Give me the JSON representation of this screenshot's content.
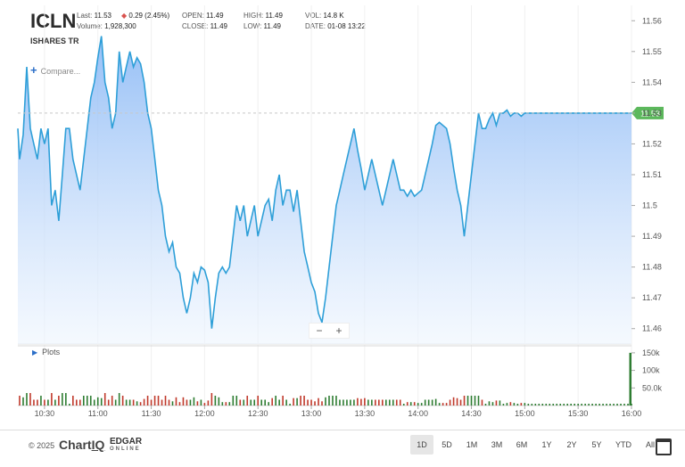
{
  "quote": {
    "symbol": "ICLN",
    "name": "ISHARES TR",
    "last_label": "Last:",
    "last": "11.53",
    "change": "0.29 (2.45%)",
    "volume_label": "Volume:",
    "volume": "1,928,300",
    "open_label": "OPEN:",
    "open": "11.49",
    "close_label": "CLOSE:",
    "close": "11.49",
    "high_label": "HIGH:",
    "high": "11.49",
    "low_label": "LOW:",
    "low": "11.49",
    "vol_label": "VOL:",
    "vol": "14.8 K",
    "date_label": "DATE:",
    "date": "01-08 13:22"
  },
  "controls": {
    "compare": "Compare...",
    "zoom_out": "−",
    "zoom_in": "+",
    "plots": "Plots"
  },
  "footer": {
    "copyright": "© 2025",
    "chartiq_a": "Chart",
    "chartiq_b": "IQ",
    "edgar": "EDGAR",
    "edgar_sub": "ONLINE",
    "ranges": [
      "1D",
      "5D",
      "1M",
      "3M",
      "6M",
      "1Y",
      "2Y",
      "5Y",
      "YTD",
      "All"
    ],
    "active_range": "1D"
  },
  "colors": {
    "line": "#2e9fd8",
    "fill_top": "#8ab8f5",
    "fill_bottom": "#eef5fe",
    "last_badge": "#5cb85c",
    "vol_up": "#2e7d32",
    "vol_down": "#c0392b"
  },
  "chart_data": {
    "type": "area",
    "ylim": [
      11.455,
      11.565
    ],
    "y_ticks": [
      11.46,
      11.47,
      11.48,
      11.49,
      11.5,
      11.51,
      11.52,
      11.53,
      11.54,
      11.55,
      11.56
    ],
    "y_tick_labels": [
      "11.46",
      "11.47",
      "11.48",
      "11.49",
      "11.5",
      "11.51",
      "11.52",
      "11.53",
      "11.54",
      "11.55",
      "11.56"
    ],
    "x_range": [
      "10:15",
      "16:00"
    ],
    "x_ticks": [
      "10:30",
      "11:00",
      "11:30",
      "12:00",
      "12:30",
      "13:00",
      "13:30",
      "14:00",
      "14:30",
      "15:00",
      "15:30",
      "16:00"
    ],
    "last_price": 11.53,
    "last_label": "11.53",
    "series": [
      {
        "x": [
          "10:15",
          "10:16",
          "10:18",
          "10:20",
          "10:22",
          "10:24",
          "10:26",
          "10:28",
          "10:30",
          "10:32",
          "10:34",
          "10:36",
          "10:38",
          "10:40",
          "10:42",
          "10:44",
          "10:46",
          "10:48",
          "10:50",
          "10:52",
          "10:54",
          "10:56",
          "10:58",
          "11:00",
          "11:02",
          "11:04",
          "11:06",
          "11:08",
          "11:10",
          "11:12",
          "11:14",
          "11:16",
          "11:18",
          "11:20",
          "11:22",
          "11:24",
          "11:26",
          "11:28",
          "11:30",
          "11:32",
          "11:34",
          "11:36",
          "11:38",
          "11:40",
          "11:42",
          "11:44",
          "11:46",
          "11:48",
          "11:50",
          "11:52",
          "11:54",
          "11:56",
          "11:58",
          "12:00",
          "12:02",
          "12:04",
          "12:06",
          "12:08",
          "12:10",
          "12:12",
          "12:14",
          "12:16",
          "12:18",
          "12:20",
          "12:22",
          "12:24",
          "12:26",
          "12:28",
          "12:30",
          "12:32",
          "12:34",
          "12:36",
          "12:38",
          "12:40",
          "12:42",
          "12:44",
          "12:46",
          "12:48",
          "12:50",
          "12:52",
          "12:54",
          "12:56",
          "12:58",
          "13:00",
          "13:02",
          "13:04",
          "13:06",
          "13:08",
          "13:10",
          "13:12",
          "13:14",
          "13:16",
          "13:18",
          "13:20",
          "13:22",
          "13:24",
          "13:26",
          "13:28",
          "13:30",
          "13:32",
          "13:34",
          "13:36",
          "13:38",
          "13:40",
          "13:42",
          "13:44",
          "13:46",
          "13:48",
          "13:50",
          "13:52",
          "13:54",
          "13:56",
          "13:58",
          "14:00",
          "14:02",
          "14:04",
          "14:06",
          "14:08",
          "14:10",
          "14:12",
          "14:14",
          "14:16",
          "14:18",
          "14:20",
          "14:22",
          "14:24",
          "14:26",
          "14:28",
          "14:30",
          "14:32",
          "14:34",
          "14:36",
          "14:38",
          "14:40",
          "14:42",
          "14:44",
          "14:46",
          "14:48",
          "14:50",
          "14:52",
          "14:54",
          "14:56",
          "14:58",
          "15:00",
          "15:02",
          "15:04",
          "15:06",
          "15:08",
          "15:10",
          "15:12",
          "15:14",
          "15:16",
          "15:18",
          "15:20",
          "15:22",
          "15:24",
          "15:26",
          "15:28",
          "15:30",
          "15:32",
          "15:34",
          "15:36",
          "15:38",
          "15:40",
          "15:42",
          "15:44",
          "15:46",
          "15:48",
          "15:50",
          "15:52",
          "15:54",
          "15:56",
          "15:58",
          "16:00"
        ],
        "values": [
          11.525,
          11.515,
          11.523,
          11.545,
          11.525,
          11.52,
          11.515,
          11.525,
          11.52,
          11.525,
          11.5,
          11.505,
          11.495,
          11.51,
          11.525,
          11.525,
          11.515,
          11.51,
          11.505,
          11.515,
          11.525,
          11.535,
          11.54,
          11.548,
          11.555,
          11.54,
          11.535,
          11.525,
          11.53,
          11.55,
          11.54,
          11.545,
          11.55,
          11.545,
          11.548,
          11.546,
          11.54,
          11.53,
          11.525,
          11.515,
          11.505,
          11.5,
          11.49,
          11.485,
          11.488,
          11.48,
          11.478,
          11.47,
          11.465,
          11.47,
          11.478,
          11.475,
          11.48,
          11.479,
          11.475,
          11.46,
          11.47,
          11.478,
          11.48,
          11.478,
          11.48,
          11.49,
          11.5,
          11.495,
          11.5,
          11.49,
          11.495,
          11.5,
          11.49,
          11.495,
          11.5,
          11.502,
          11.495,
          11.505,
          11.51,
          11.5,
          11.505,
          11.505,
          11.498,
          11.505,
          11.495,
          11.485,
          11.48,
          11.475,
          11.472,
          11.465,
          11.462,
          11.47,
          11.48,
          11.49,
          11.5,
          11.505,
          11.51,
          11.515,
          11.52,
          11.525,
          11.518,
          11.512,
          11.505,
          11.51,
          11.515,
          11.51,
          11.505,
          11.5,
          11.505,
          11.51,
          11.515,
          11.51,
          11.505,
          11.505,
          11.503,
          11.505,
          11.503,
          11.504,
          11.505,
          11.51,
          11.515,
          11.52,
          11.526,
          11.527,
          11.526,
          11.525,
          11.52,
          11.512,
          11.505,
          11.5,
          11.49,
          11.5,
          11.51,
          11.52,
          11.53,
          11.525,
          11.525,
          11.528,
          11.53,
          11.526,
          11.53,
          11.53,
          11.531,
          11.529,
          11.53,
          11.53,
          11.529,
          11.53,
          11.53,
          11.53,
          11.53,
          11.53,
          11.53,
          11.53,
          11.53,
          11.53,
          11.53,
          11.53,
          11.53,
          11.53,
          11.53,
          11.53,
          11.53,
          11.53,
          11.53,
          11.53,
          11.53,
          11.53,
          11.53,
          11.53,
          11.53,
          11.53,
          11.53,
          11.53,
          11.53,
          11.53,
          11.53,
          11.53
        ]
      }
    ],
    "volume": {
      "y_tick_labels": [
        "150k",
        "100k",
        "50.0k"
      ],
      "y_ticks": [
        150000,
        100000,
        50000
      ],
      "ylim": [
        0,
        170000
      ]
    }
  }
}
